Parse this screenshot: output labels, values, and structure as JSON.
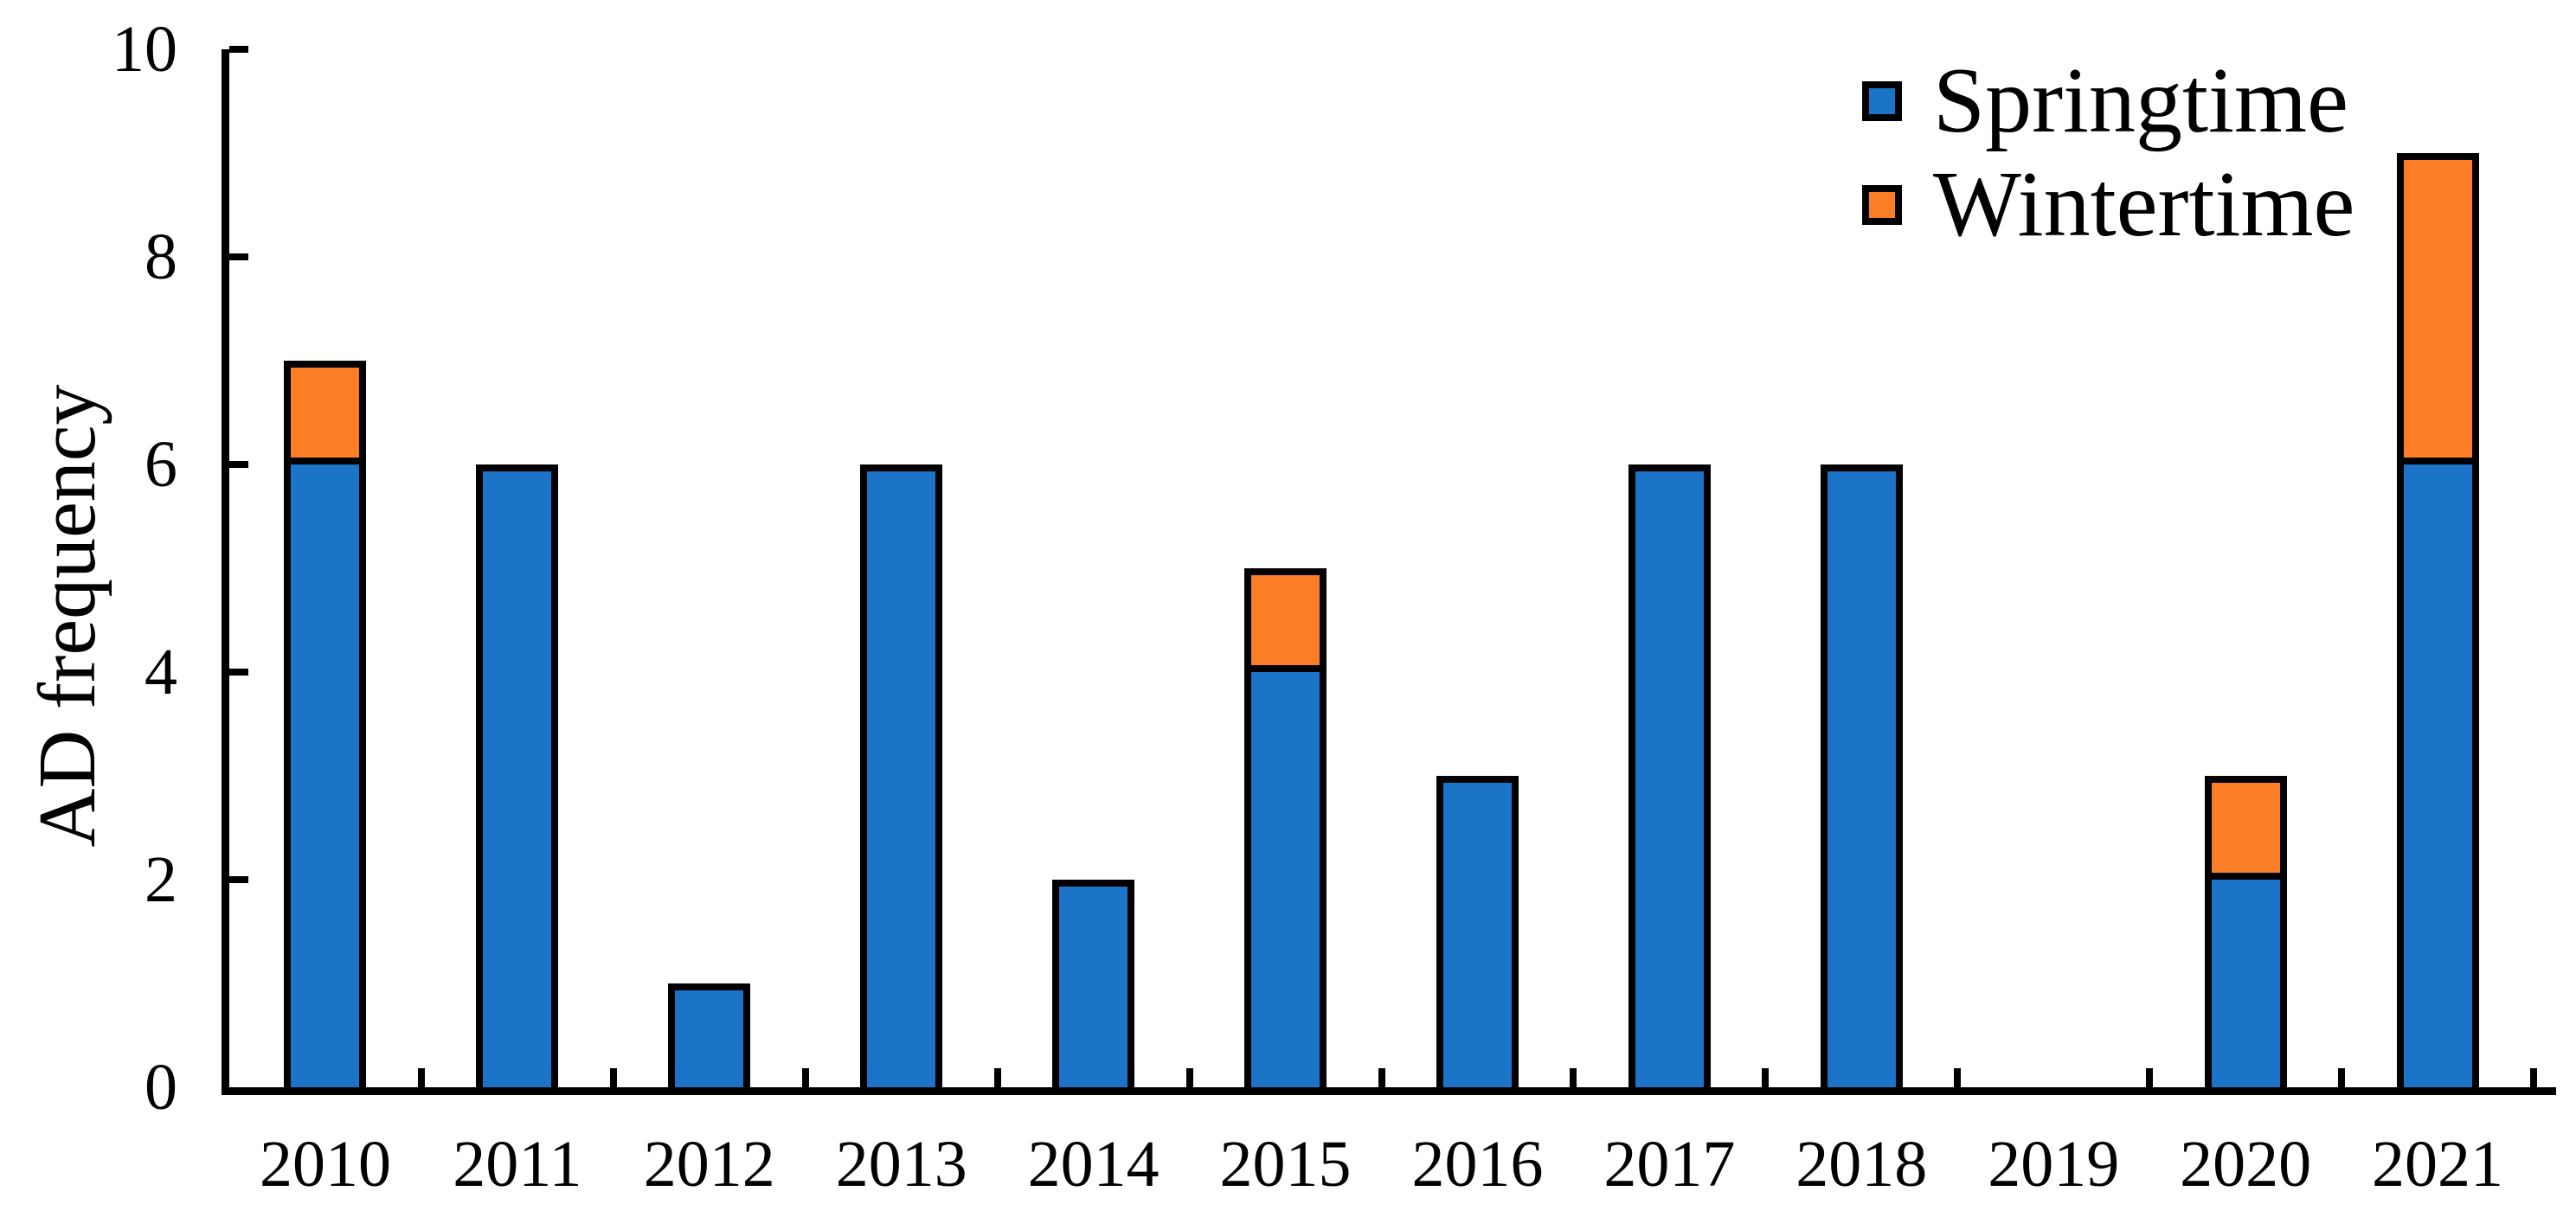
{
  "chart_data": {
    "type": "bar",
    "stacked": true,
    "title": "",
    "xlabel": "",
    "ylabel": "AD frequency",
    "categories": [
      "2010",
      "2011",
      "2012",
      "2013",
      "2014",
      "2015",
      "2016",
      "2017",
      "2018",
      "2019",
      "2020",
      "2021"
    ],
    "series": [
      {
        "name": "Springtime",
        "color": "#1B74C8",
        "values": [
          6,
          6,
          1,
          6,
          2,
          4,
          3,
          6,
          6,
          0,
          2,
          6
        ]
      },
      {
        "name": "Wintertime",
        "color": "#FB7D26",
        "values": [
          1,
          0,
          0,
          0,
          0,
          1,
          0,
          0,
          0,
          0,
          1,
          3
        ]
      }
    ],
    "totals": [
      7,
      6,
      1,
      6,
      2,
      5,
      3,
      6,
      6,
      0,
      3,
      9
    ],
    "ylim": [
      0,
      10
    ],
    "yticks": [
      0,
      2,
      4,
      6,
      8,
      10
    ],
    "grid": false,
    "legend_position": "top-right",
    "axis_color": "#000000",
    "bar_outline_color": "#000000",
    "background_color": "#FFFFFF"
  }
}
